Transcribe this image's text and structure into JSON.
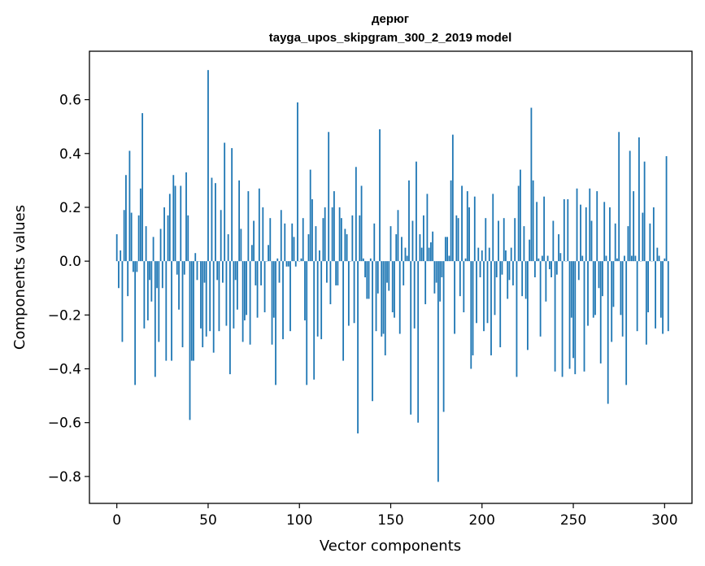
{
  "chart_data": {
    "type": "bar",
    "title_line1": "дерюг",
    "title_line2": "tayga_upos_skipgram_300_2_2019 model",
    "xlabel": "Vector components",
    "ylabel": "Components values",
    "xlim": [
      -15,
      315
    ],
    "ylim": [
      -0.9,
      0.78
    ],
    "xticks": [
      0,
      50,
      100,
      150,
      200,
      250,
      300
    ],
    "xtick_labels": [
      "0",
      "50",
      "100",
      "150",
      "200",
      "250",
      "300"
    ],
    "yticks": [
      -0.8,
      -0.6,
      -0.4,
      -0.2,
      0.0,
      0.2,
      0.4,
      0.6
    ],
    "ytick_labels": [
      "−0.8",
      "−0.6",
      "−0.4",
      "−0.2",
      "0.0",
      "0.2",
      "0.4",
      "0.6"
    ],
    "grid": false,
    "bar_color": "#1f77b4",
    "values": [
      0.1,
      -0.1,
      0.04,
      -0.3,
      0.19,
      0.32,
      -0.13,
      0.41,
      0.18,
      -0.04,
      -0.46,
      -0.04,
      0.17,
      0.27,
      0.55,
      -0.25,
      0.13,
      -0.22,
      -0.07,
      -0.15,
      0.09,
      -0.43,
      -0.1,
      -0.3,
      0.12,
      -0.1,
      0.2,
      -0.37,
      0.17,
      0.25,
      -0.37,
      0.32,
      0.28,
      -0.05,
      -0.18,
      0.28,
      -0.32,
      -0.05,
      0.33,
      0.17,
      -0.59,
      -0.37,
      -0.37,
      0.03,
      -0.07,
      0.0,
      -0.25,
      -0.32,
      -0.08,
      -0.28,
      0.71,
      -0.26,
      0.31,
      -0.34,
      0.29,
      -0.07,
      -0.26,
      0.19,
      -0.08,
      0.44,
      -0.24,
      0.1,
      -0.42,
      0.42,
      -0.25,
      -0.07,
      -0.18,
      0.3,
      0.12,
      -0.3,
      -0.22,
      -0.2,
      0.26,
      -0.31,
      0.06,
      0.15,
      -0.09,
      -0.21,
      0.27,
      -0.09,
      0.2,
      -0.19,
      0.0,
      0.06,
      0.16,
      -0.31,
      -0.21,
      -0.46,
      0.01,
      -0.08,
      0.19,
      -0.29,
      0.14,
      -0.02,
      -0.02,
      -0.26,
      0.14,
      0.09,
      -0.02,
      0.59,
      0.0,
      0.01,
      0.16,
      -0.22,
      -0.46,
      0.1,
      0.34,
      0.23,
      -0.44,
      0.13,
      -0.28,
      0.04,
      -0.29,
      0.16,
      0.2,
      -0.08,
      0.48,
      -0.16,
      0.2,
      0.26,
      -0.09,
      -0.09,
      0.2,
      0.16,
      -0.37,
      0.12,
      0.1,
      -0.24,
      0.0,
      0.17,
      -0.23,
      0.35,
      -0.64,
      0.17,
      0.28,
      0.01,
      -0.06,
      -0.14,
      -0.14,
      0.01,
      -0.52,
      0.14,
      -0.26,
      -0.12,
      0.49,
      -0.28,
      -0.27,
      -0.35,
      -0.08,
      -0.11,
      0.13,
      -0.19,
      -0.21,
      0.1,
      0.19,
      -0.27,
      0.09,
      -0.09,
      0.05,
      0.02,
      0.3,
      -0.57,
      0.15,
      -0.25,
      0.37,
      -0.6,
      0.1,
      0.05,
      0.17,
      -0.16,
      0.25,
      0.05,
      0.07,
      0.11,
      -0.12,
      -0.08,
      -0.82,
      -0.15,
      -0.06,
      -0.56,
      0.09,
      0.09,
      0.02,
      0.3,
      0.47,
      -0.27,
      0.17,
      0.16,
      -0.13,
      0.28,
      -0.19,
      0.01,
      0.26,
      0.2,
      -0.4,
      -0.35,
      0.24,
      -0.23,
      0.05,
      -0.06,
      0.04,
      -0.26,
      0.16,
      -0.23,
      0.05,
      -0.35,
      0.25,
      -0.2,
      -0.06,
      0.15,
      -0.32,
      -0.05,
      0.16,
      0.04,
      -0.14,
      -0.07,
      0.05,
      -0.09,
      0.16,
      -0.43,
      0.28,
      0.34,
      -0.13,
      0.13,
      -0.14,
      -0.33,
      0.08,
      0.57,
      0.3,
      -0.06,
      0.22,
      0.01,
      -0.28,
      0.02,
      0.24,
      -0.15,
      0.02,
      -0.03,
      -0.06,
      0.15,
      -0.41,
      -0.05,
      0.1,
      0.03,
      -0.43,
      0.23,
      0.0,
      0.23,
      -0.4,
      -0.21,
      -0.36,
      -0.42,
      0.27,
      -0.07,
      0.21,
      0.02,
      -0.41,
      0.2,
      -0.24,
      0.27,
      0.15,
      -0.21,
      -0.2,
      0.26,
      -0.1,
      -0.38,
      -0.13,
      0.22,
      0.02,
      -0.53,
      0.2,
      -0.3,
      -0.17,
      0.14,
      0.01,
      0.48,
      -0.2,
      -0.28,
      0.02,
      -0.46,
      0.13,
      0.41,
      0.02,
      0.26,
      0.02,
      -0.26,
      0.46,
      0.0,
      0.18,
      0.37,
      -0.31,
      -0.19,
      0.14,
      0.0,
      0.2,
      -0.25,
      0.05,
      0.02,
      -0.21,
      -0.27,
      0.01,
      0.39,
      -0.26
    ]
  }
}
